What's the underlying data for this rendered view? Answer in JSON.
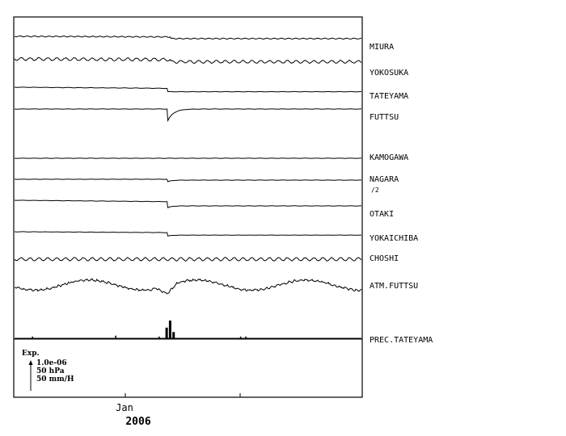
{
  "chart_data": {
    "type": "line",
    "x_tick_month": "Jan",
    "x_tick_year": "2006",
    "series": [
      {
        "name": "MIURA",
        "kind": "step",
        "before": 0.0,
        "after": 0.4,
        "step_at": 0.45,
        "noise": 0.55,
        "per": 9,
        "wobble": 0.0
      },
      {
        "name": "YOKOSUKA",
        "kind": "step",
        "before": 0.0,
        "after": 0.5,
        "step_at": 0.45,
        "noise": 1.7,
        "per": 11,
        "wobble": 0.0
      },
      {
        "name": "TATEYAMA",
        "kind": "step",
        "before": 0.0,
        "after": 0.8,
        "step_at": 0.44,
        "noise": 0.2,
        "per": 14,
        "wobble": 0.0
      },
      {
        "name": "FUTTSU",
        "kind": "spike",
        "before": 0.0,
        "after": 0.0,
        "step_at": 0.44,
        "noise": 0.15,
        "per": 14,
        "spike": 2.3
      },
      {
        "name": "KAMOGAWA",
        "kind": "flat",
        "before": 0.0,
        "after": 0.0,
        "step_at": 0.44,
        "noise": 0.15,
        "per": 14,
        "wobble": 0.0
      },
      {
        "name": "NAGARA",
        "kind": "dip",
        "before": 0.0,
        "after": 0.15,
        "step_at": 0.44,
        "noise": 0.12,
        "per": 14,
        "spike": 0.35
      },
      {
        "name": "OTAKI",
        "kind": "step",
        "before": 0.0,
        "after": 1.0,
        "step_at": 0.44,
        "noise": 0.15,
        "per": 14,
        "spike": 0.4
      },
      {
        "name": "YOKAICHIBA",
        "kind": "step",
        "before": 0.0,
        "after": 0.6,
        "step_at": 0.44,
        "noise": 0.15,
        "per": 14,
        "spike": 0.2
      },
      {
        "name": "CHOSHI",
        "kind": "tidal",
        "before": 0.0,
        "after": 0.0,
        "step_at": 0.44,
        "noise": 1.9,
        "per": 11,
        "wobble": 0.0
      },
      {
        "name": "ATM.FUTTSU",
        "kind": "pressure",
        "before": 0.0,
        "after": 0.0,
        "step_at": 0.44,
        "noise": 1.0,
        "per": 6,
        "wobble": 1.0
      },
      {
        "name": "PREC.TATEYAMA",
        "kind": "bars",
        "bars": [
          [
            0.05,
            0.1
          ],
          [
            0.29,
            0.15
          ],
          [
            0.415,
            0.1
          ],
          [
            0.435,
            0.6
          ],
          [
            0.445,
            1.0
          ],
          [
            0.455,
            0.35
          ],
          [
            0.65,
            0.1
          ],
          [
            0.665,
            0.1
          ]
        ]
      }
    ],
    "sub_label": "/2",
    "legend": {
      "title": "Exp.",
      "lines": [
        "1.0e-06",
        "50 hPa",
        "50 mm/H"
      ]
    }
  }
}
